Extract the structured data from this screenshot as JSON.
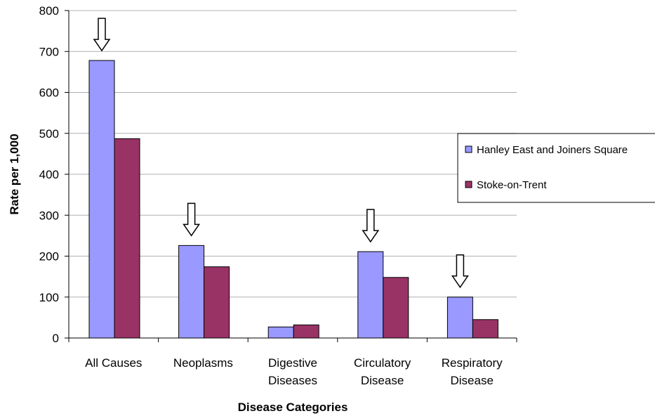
{
  "chart_data": {
    "type": "bar",
    "xlabel": "Disease Categories",
    "ylabel": "Rate per 1,000",
    "ylim": [
      0,
      800
    ],
    "yticks": [
      0,
      100,
      200,
      300,
      400,
      500,
      600,
      700,
      800
    ],
    "grid": true,
    "legend_position": "right",
    "categories": [
      [
        "All Causes"
      ],
      [
        "Neoplasms"
      ],
      [
        "Digestive",
        "Diseases"
      ],
      [
        "Circulatory",
        "Disease"
      ],
      [
        "Respiratory",
        "Disease"
      ]
    ],
    "series": [
      {
        "name": "Hanley East and Joiners Square",
        "color": "#9999ff",
        "values": [
          678,
          226,
          27,
          211,
          100
        ]
      },
      {
        "name": "Stoke-on-Trent",
        "color": "#993366",
        "values": [
          487,
          174,
          32,
          148,
          45
        ]
      }
    ],
    "annotations": [
      {
        "type": "down-arrow",
        "category_index": 0,
        "series_index": 0
      },
      {
        "type": "down-arrow",
        "category_index": 1,
        "series_index": 0
      },
      {
        "type": "down-arrow",
        "category_index": 3,
        "series_index": 0
      },
      {
        "type": "down-arrow",
        "category_index": 4,
        "series_index": 0
      }
    ]
  }
}
